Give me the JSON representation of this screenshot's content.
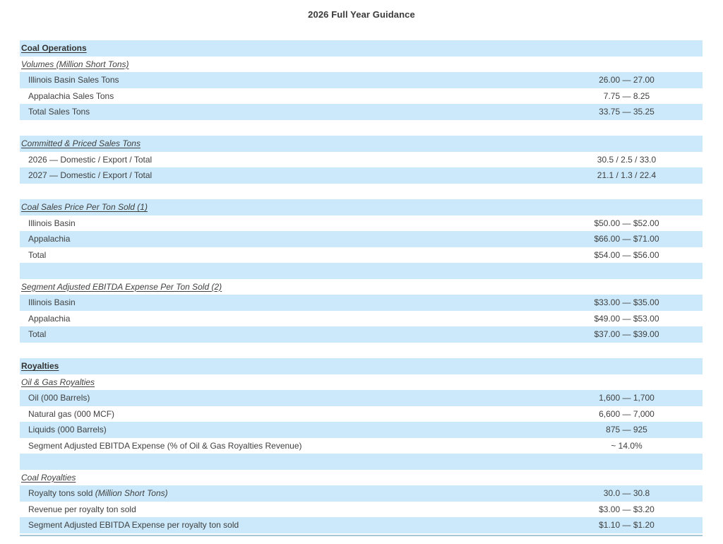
{
  "title": "2026 Full Year Guidance",
  "colors": {
    "row_highlight": "#cbe9fa",
    "text": "#404040",
    "bottom_rule": "#a6c7d8"
  },
  "table": {
    "rows": [
      {
        "type": "section",
        "style": "bold",
        "shade": "blue",
        "label": "Coal Operations"
      },
      {
        "type": "section",
        "style": "italic",
        "shade": "white",
        "label": "Volumes (Million Short Tons)"
      },
      {
        "type": "data",
        "shade": "blue",
        "label": "Illinois Basin Sales Tons",
        "value": "26.00 — 27.00"
      },
      {
        "type": "data",
        "shade": "white",
        "label": "Appalachia Sales Tons",
        "value": "7.75 — 8.25"
      },
      {
        "type": "data",
        "shade": "blue",
        "label": "Total Sales Tons",
        "value": "33.75 — 35.25"
      },
      {
        "type": "blank",
        "shade": "white"
      },
      {
        "type": "section",
        "style": "italic",
        "shade": "blue",
        "label": "Committed & Priced Sales Tons"
      },
      {
        "type": "data",
        "shade": "white",
        "label": "2026 — Domestic / Export / Total",
        "value": "30.5 / 2.5 / 33.0"
      },
      {
        "type": "data",
        "shade": "blue",
        "label": "2027 — Domestic / Export / Total",
        "value": "21.1 / 1.3 / 22.4"
      },
      {
        "type": "blank",
        "shade": "white"
      },
      {
        "type": "section",
        "style": "italic",
        "shade": "blue",
        "label": "Coal Sales Price Per Ton Sold (1)"
      },
      {
        "type": "data",
        "shade": "white",
        "label": "Illinois Basin",
        "value": "$50.00 — $52.00"
      },
      {
        "type": "data",
        "shade": "blue",
        "label": "Appalachia",
        "value": "$66.00 — $71.00"
      },
      {
        "type": "data",
        "shade": "white",
        "label": "Total",
        "value": "$54.00 — $56.00"
      },
      {
        "type": "blank",
        "shade": "blue"
      },
      {
        "type": "section",
        "style": "italic",
        "shade": "white",
        "label": "Segment Adjusted EBITDA Expense Per Ton Sold (2)"
      },
      {
        "type": "data",
        "shade": "blue",
        "label": "Illinois Basin",
        "value": "$33.00 — $35.00"
      },
      {
        "type": "data",
        "shade": "white",
        "label": "Appalachia",
        "value": "$49.00 — $53.00"
      },
      {
        "type": "data",
        "shade": "blue",
        "label": "Total",
        "value": "$37.00 — $39.00"
      },
      {
        "type": "blank",
        "shade": "white"
      },
      {
        "type": "section",
        "style": "bold",
        "shade": "blue",
        "label": "Royalties"
      },
      {
        "type": "section",
        "style": "italic",
        "shade": "white",
        "label": "Oil & Gas Royalties"
      },
      {
        "type": "data",
        "shade": "blue",
        "label": "Oil (000 Barrels)",
        "value": "1,600 — 1,700"
      },
      {
        "type": "data",
        "shade": "white",
        "label": "Natural gas (000 MCF)",
        "value": "6,600 — 7,000"
      },
      {
        "type": "data",
        "shade": "blue",
        "label": "Liquids (000 Barrels)",
        "value": "875 — 925"
      },
      {
        "type": "data",
        "shade": "white",
        "label": "Segment Adjusted EBITDA Expense (% of Oil & Gas Royalties Revenue)",
        "value": "~ 14.0%"
      },
      {
        "type": "blank",
        "shade": "blue"
      },
      {
        "type": "section",
        "style": "italic",
        "shade": "white",
        "label": "Coal Royalties"
      },
      {
        "type": "data",
        "shade": "blue",
        "label": "Royalty tons sold ",
        "label_italic": "(Million Short Tons)",
        "value": "30.0 — 30.8"
      },
      {
        "type": "data",
        "shade": "white",
        "label": "Revenue per royalty ton sold",
        "value": "$3.00 — $3.20"
      },
      {
        "type": "data",
        "shade": "blue",
        "label": "Segment Adjusted EBITDA Expense per royalty ton sold",
        "value": "$1.10 — $1.20"
      }
    ]
  }
}
